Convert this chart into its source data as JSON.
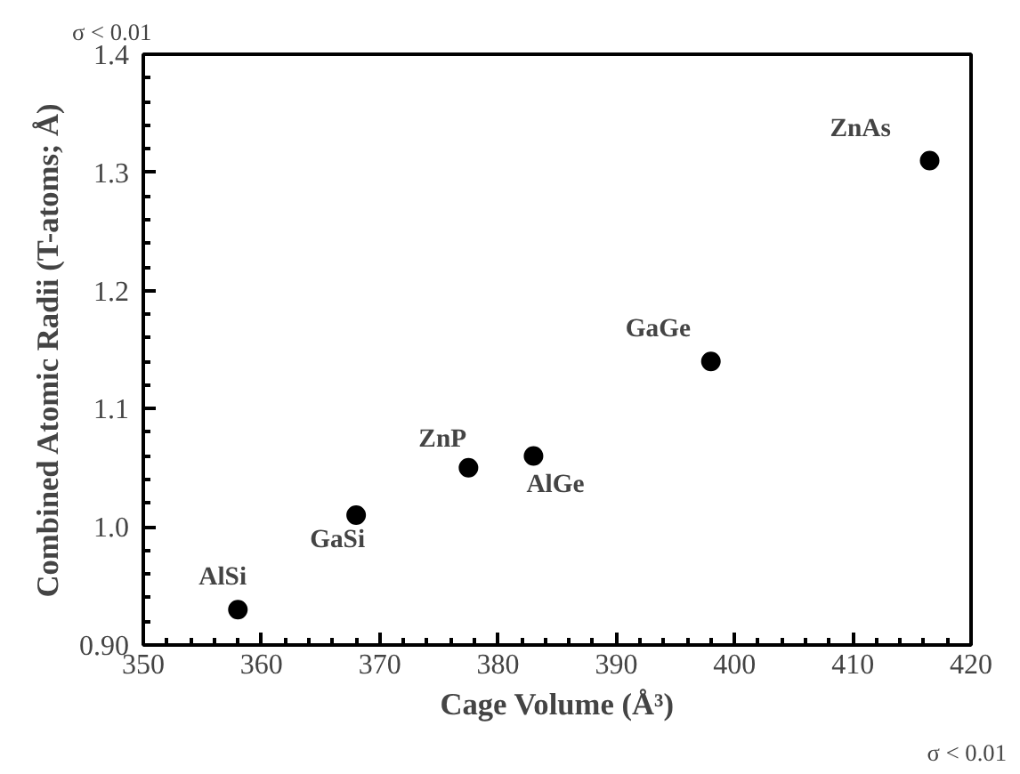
{
  "chart_data": {
    "type": "scatter",
    "xlabel": "Cage Volume (Å³)",
    "ylabel": "Combined Atomic Radii (T-atoms; Å)",
    "x": [
      358,
      368,
      377.5,
      383,
      398,
      416.5
    ],
    "series": [
      {
        "color": "#000000",
        "values": [
          0.93,
          1.01,
          1.05,
          1.06,
          1.14,
          1.31
        ]
      }
    ],
    "marker": "circle",
    "grid": false,
    "xlim": [
      350,
      420
    ],
    "xticks": [
      350,
      360,
      370,
      380,
      390,
      400,
      410,
      420
    ],
    "ylim": [
      0.9,
      1.4
    ],
    "yticks": [
      {
        "value": 0.9,
        "label": "0.90"
      },
      {
        "value": 1.0,
        "label": "1.0"
      },
      {
        "value": 1.1,
        "label": "1.1"
      },
      {
        "value": 1.2,
        "label": "1.2"
      },
      {
        "value": 1.3,
        "label": "1.3"
      },
      {
        "value": 1.4,
        "label": "1.4"
      }
    ],
    "annotations": [
      {
        "text": "AlSi",
        "x": 358,
        "y": 0.93
      },
      {
        "text": "GaSi",
        "x": 368,
        "y": 1.01
      },
      {
        "text": "ZnP",
        "x": 377.5,
        "y": 1.05
      },
      {
        "text": "AlGe",
        "x": 383,
        "y": 1.06
      },
      {
        "text": "GaGe",
        "x": 398,
        "y": 1.14
      },
      {
        "text": "ZnAs",
        "x": 416.5,
        "y": 1.31
      },
      "σ < 0.01",
      "σ < 0.01"
    ]
  }
}
